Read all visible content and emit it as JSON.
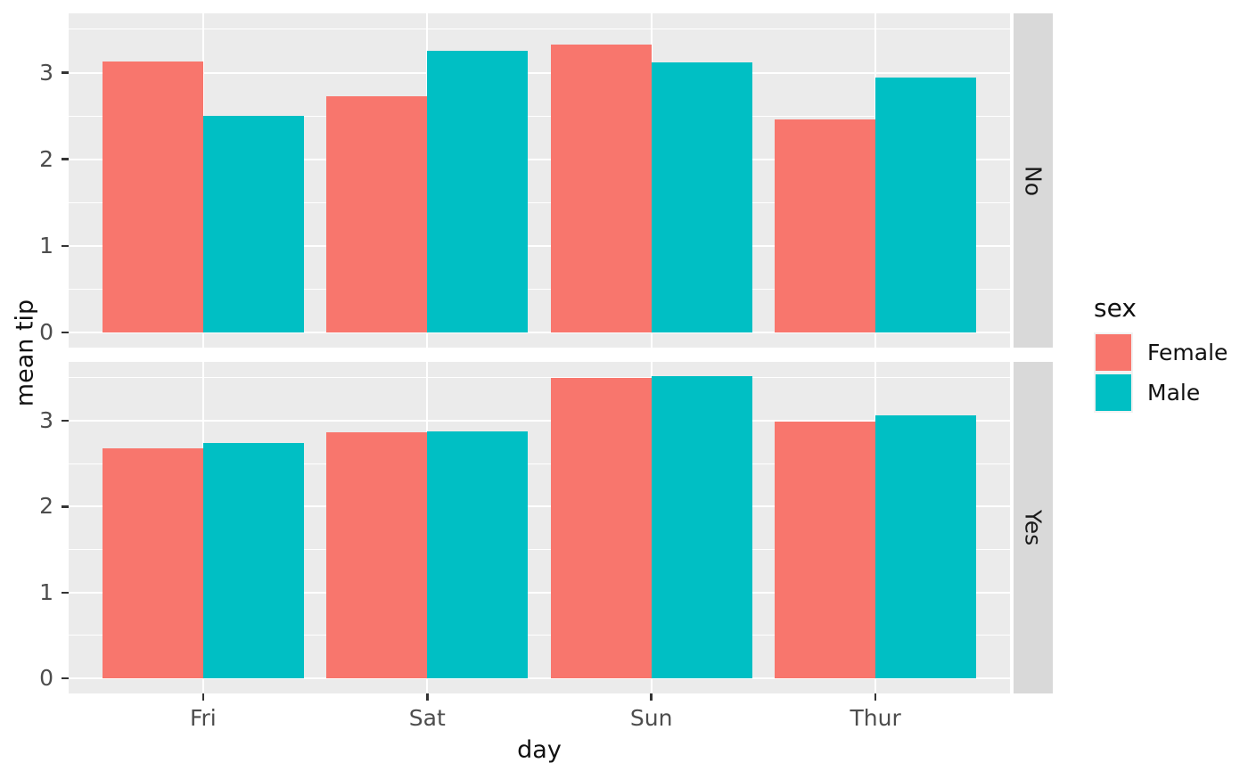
{
  "chart_data": {
    "type": "bar",
    "title": "",
    "xlabel": "day",
    "ylabel": "mean tip",
    "categories": [
      "Fri",
      "Sat",
      "Sun",
      "Thur"
    ],
    "y_ticks": [
      0,
      1,
      2,
      3
    ],
    "ylim": [
      -0.18,
      3.69
    ],
    "grid": true,
    "legend_position": "right",
    "legend": {
      "title": "sex",
      "entries": [
        {
          "label": "Female",
          "color": "#F8766D"
        },
        {
          "label": "Male",
          "color": "#00BFC4"
        }
      ]
    },
    "facets": [
      {
        "label": "No",
        "series": [
          {
            "name": "Female",
            "values": [
              3.125,
              2.725,
              3.329,
              2.46
            ]
          },
          {
            "name": "Male",
            "values": [
              2.5,
              3.257,
              3.115,
              2.942
            ]
          }
        ]
      },
      {
        "label": "Yes",
        "series": [
          {
            "name": "Female",
            "values": [
              2.683,
              2.869,
              3.5,
              2.99
            ]
          },
          {
            "name": "Male",
            "values": [
              2.741,
              2.879,
              3.521,
              3.058
            ]
          }
        ]
      }
    ],
    "style": {
      "panel_bg": "#EBEBEB",
      "strip_bg": "#D9D9D9",
      "gridline_color": "#FFFFFF",
      "tick_mark_color": "#333333",
      "tick_label_color": "#4D4D4D",
      "text_color": "#111111"
    }
  }
}
